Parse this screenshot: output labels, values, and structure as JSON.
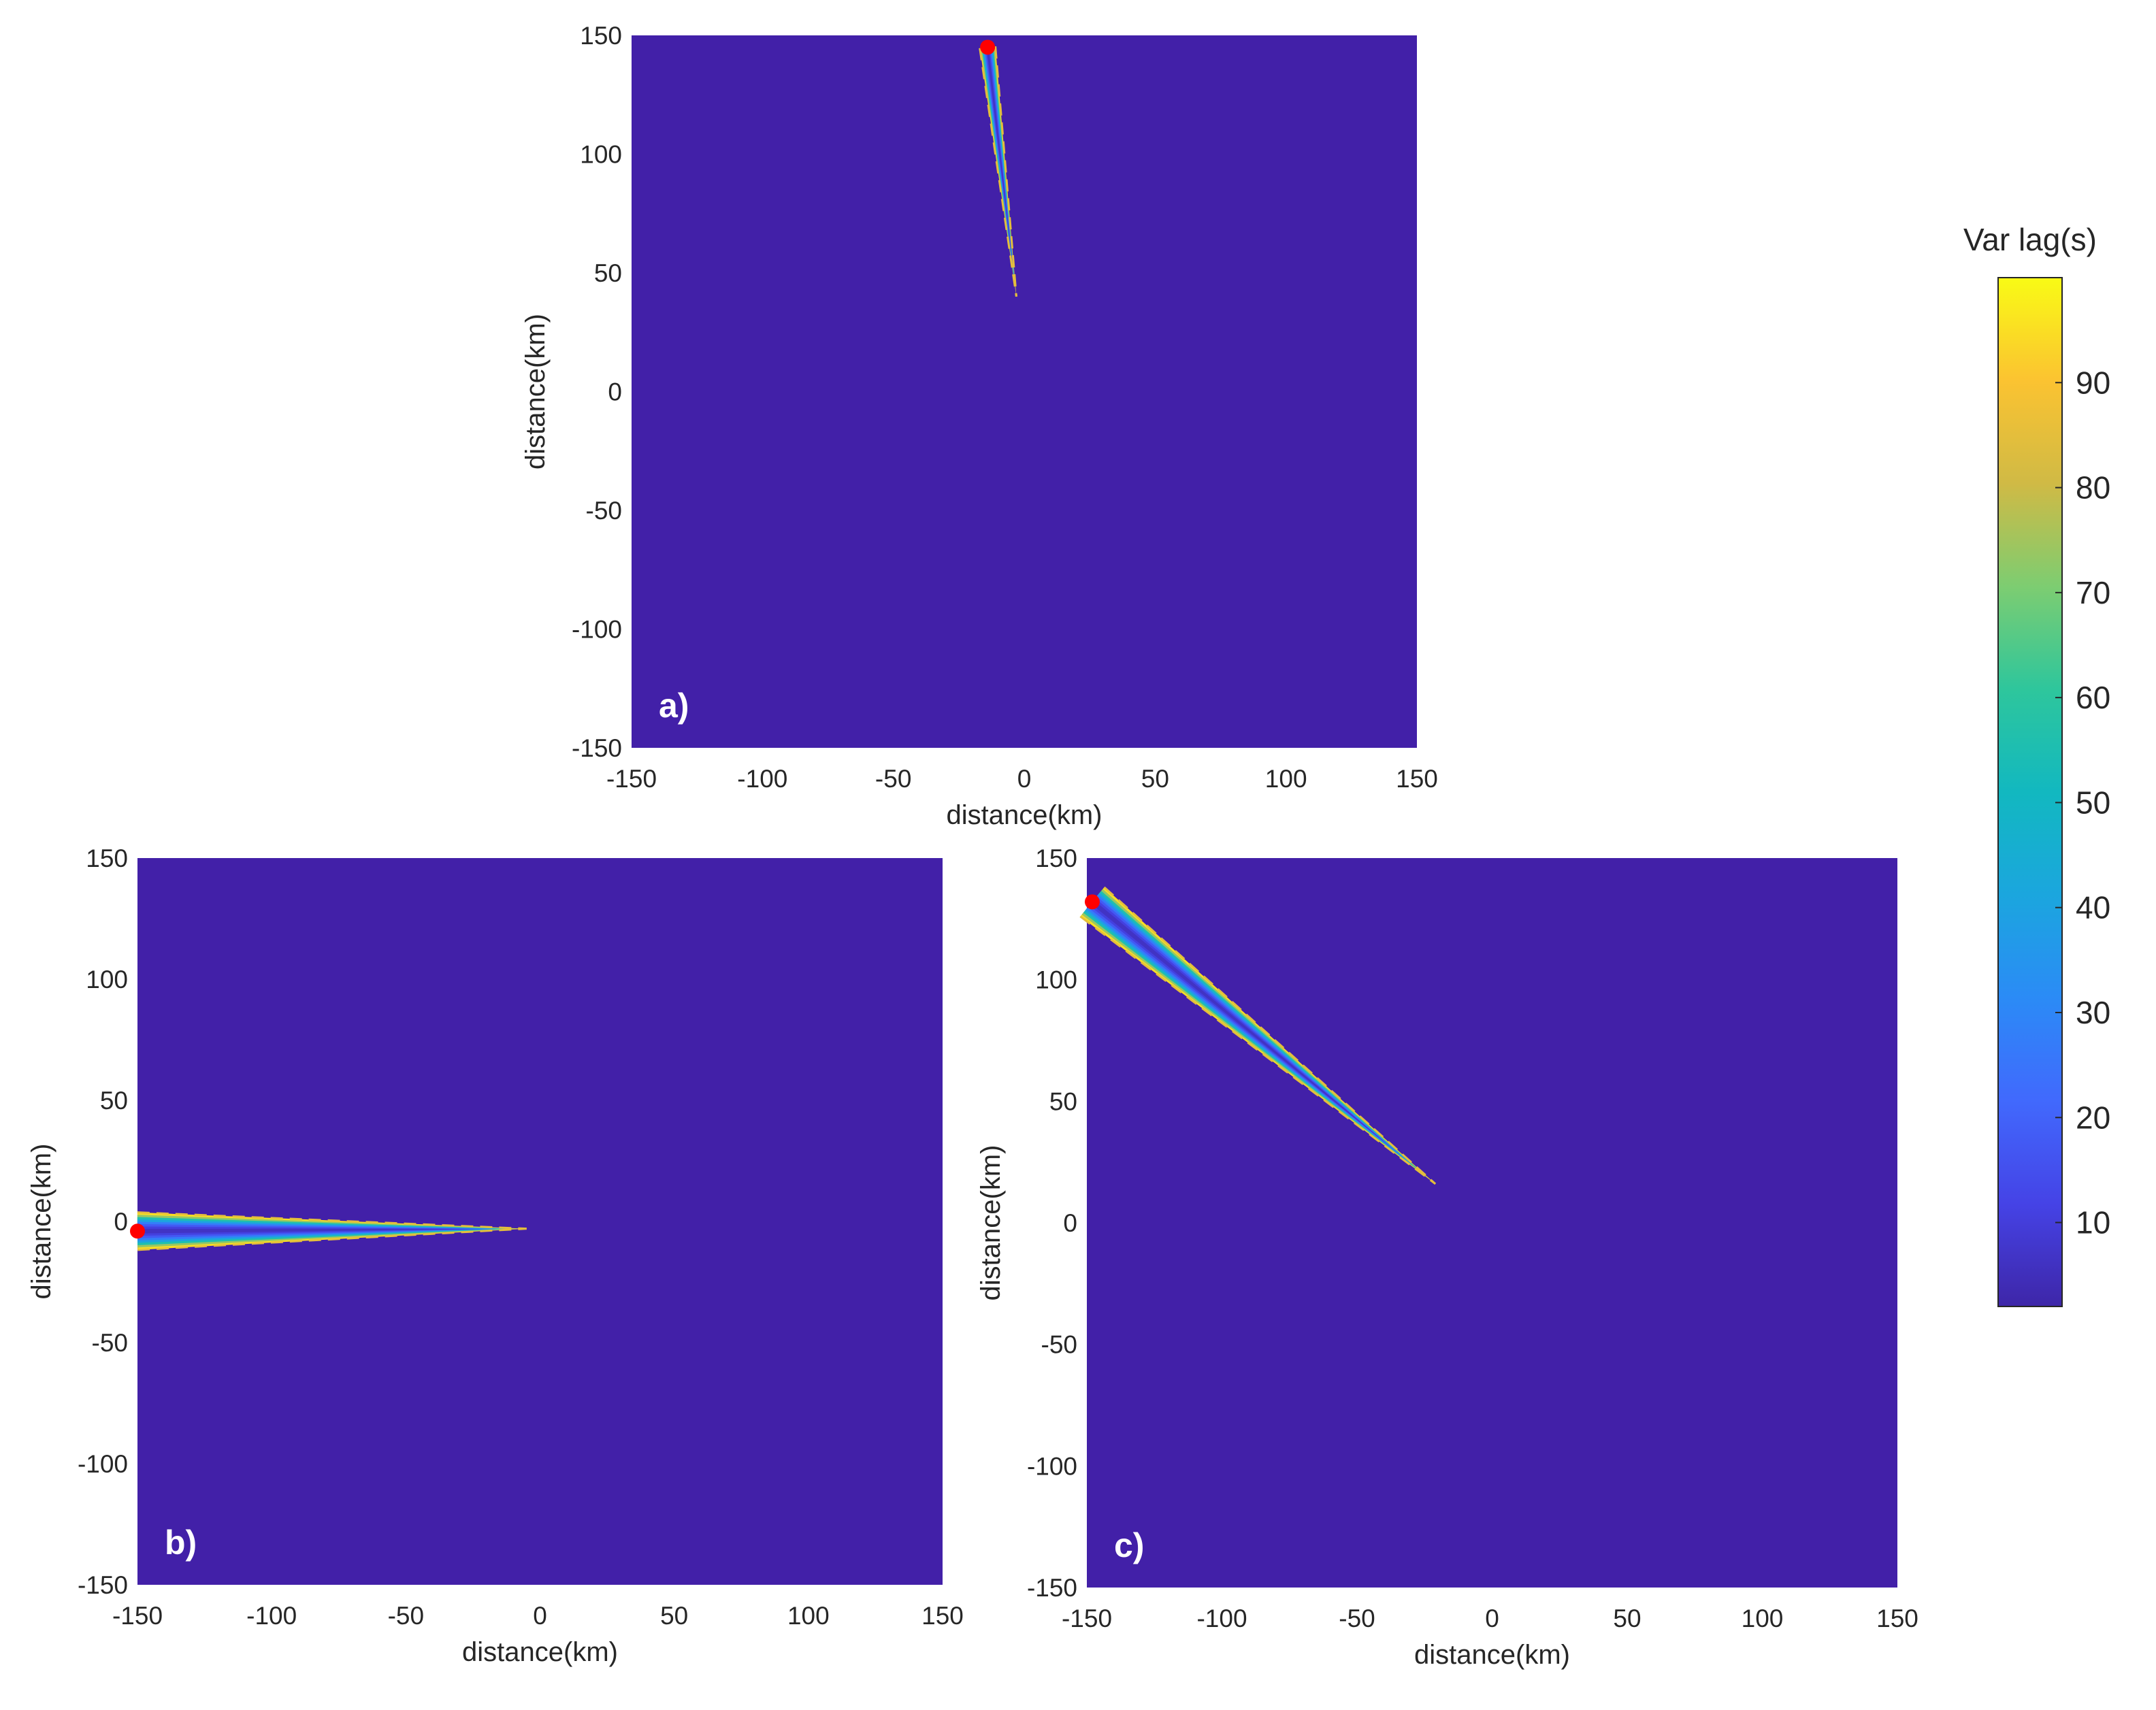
{
  "colorbar": {
    "title": "Var lag(s)",
    "range": [
      2,
      100
    ],
    "ticks": [
      10,
      20,
      30,
      40,
      50,
      60,
      70,
      80,
      90
    ],
    "colormap": "parula",
    "colormap_stops": [
      {
        "v": 0.0,
        "c": "#3e26a8"
      },
      {
        "v": 0.1,
        "c": "#4543e6"
      },
      {
        "v": 0.2,
        "c": "#4169fd"
      },
      {
        "v": 0.3,
        "c": "#2b8bf6"
      },
      {
        "v": 0.4,
        "c": "#1ba6de"
      },
      {
        "v": 0.5,
        "c": "#12b8c0"
      },
      {
        "v": 0.6,
        "c": "#2ec69c"
      },
      {
        "v": 0.7,
        "c": "#7dcd71"
      },
      {
        "v": 0.8,
        "c": "#d0ba45"
      },
      {
        "v": 0.9,
        "c": "#fbc331"
      },
      {
        "v": 1.0,
        "c": "#f9fb15"
      }
    ]
  },
  "chart_data": [
    {
      "type": "heatmap",
      "panel_label": "a)",
      "xlabel": "distance(km)",
      "ylabel": "distance(km)",
      "xlim": [
        -150,
        150
      ],
      "ylim": [
        -150,
        150
      ],
      "xticks": [
        -150,
        -100,
        -50,
        0,
        50,
        100,
        150
      ],
      "yticks": [
        -150,
        -100,
        -50,
        0,
        50,
        100,
        150
      ],
      "background_value": 2,
      "background_color": "#4220a8",
      "source_point": {
        "x": -14,
        "y": 145,
        "color": "#ff0000"
      },
      "wedge": {
        "tip_x": -3,
        "tip_y": 40,
        "width_at_source_km": 6,
        "min_value": 5,
        "max_value": 95
      }
    },
    {
      "type": "heatmap",
      "panel_label": "b)",
      "xlabel": "distance(km)",
      "ylabel": "distance(km)",
      "xlim": [
        -150,
        150
      ],
      "ylim": [
        -150,
        150
      ],
      "xticks": [
        -150,
        -100,
        -50,
        0,
        50,
        100,
        150
      ],
      "yticks": [
        -150,
        -100,
        -50,
        0,
        50,
        100,
        150
      ],
      "background_value": 2,
      "background_color": "#4220a8",
      "source_point": {
        "x": -150,
        "y": -4,
        "color": "#ff0000"
      },
      "wedge": {
        "tip_x": -5,
        "tip_y": -3,
        "width_at_source_km": 14,
        "min_value": 5,
        "max_value": 95
      }
    },
    {
      "type": "heatmap",
      "panel_label": "c)",
      "xlabel": "distance(km)",
      "ylabel": "distance(km)",
      "xlim": [
        -150,
        150
      ],
      "ylim": [
        -150,
        150
      ],
      "xticks": [
        -150,
        -100,
        -50,
        0,
        50,
        100,
        150
      ],
      "yticks": [
        -150,
        -100,
        -50,
        0,
        50,
        100,
        150
      ],
      "background_value": 2,
      "background_color": "#4220a8",
      "source_point": {
        "x": -148,
        "y": 132,
        "color": "#ff0000"
      },
      "wedge": {
        "tip_x": -21,
        "tip_y": 16,
        "width_at_source_km": 14,
        "min_value": 5,
        "max_value": 95
      }
    }
  ]
}
